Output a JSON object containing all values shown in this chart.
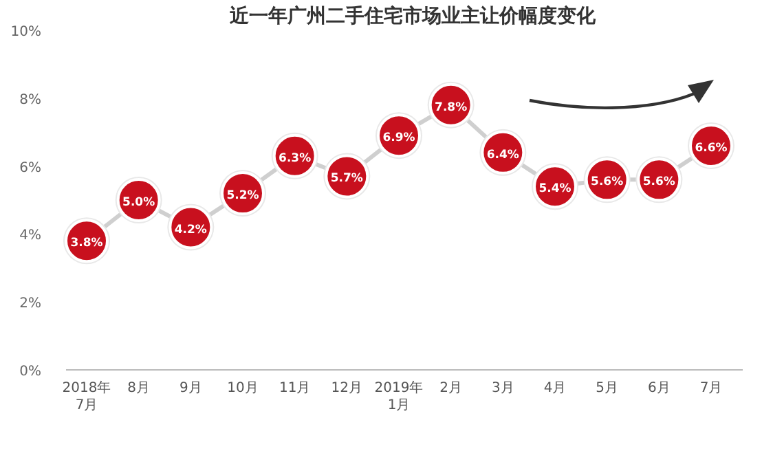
{
  "chart_data": {
    "type": "line",
    "title": "近一年广州二手住宅市场业主让价幅度变化",
    "categories": [
      "2018年\n7月",
      "8月",
      "9月",
      "10月",
      "11月",
      "12月",
      "2019年\n1月",
      "2月",
      "3月",
      "4月",
      "5月",
      "6月",
      "7月"
    ],
    "series": [
      {
        "color": "#c8101e",
        "values": [
          3.8,
          5.0,
          4.2,
          5.2,
          6.3,
          5.7,
          6.9,
          7.8,
          6.4,
          5.4,
          5.6,
          5.6,
          6.6
        ],
        "value_labels": [
          "3.8%",
          "5.0%",
          "4.2%",
          "5.2%",
          "6.3%",
          "5.7%",
          "6.9%",
          "7.8%",
          "6.4%",
          "5.4%",
          "5.6%",
          "5.6%",
          "6.6%"
        ]
      }
    ],
    "ylim": [
      0,
      10
    ],
    "yticks": [
      {
        "value": 0,
        "label": "0%"
      },
      {
        "value": 2,
        "label": "2%"
      },
      {
        "value": 4,
        "label": "4%"
      },
      {
        "value": 6,
        "label": "6%"
      },
      {
        "value": 8,
        "label": "8%"
      },
      {
        "value": 10,
        "label": "10%"
      }
    ],
    "marker": "circle",
    "grid": false
  }
}
